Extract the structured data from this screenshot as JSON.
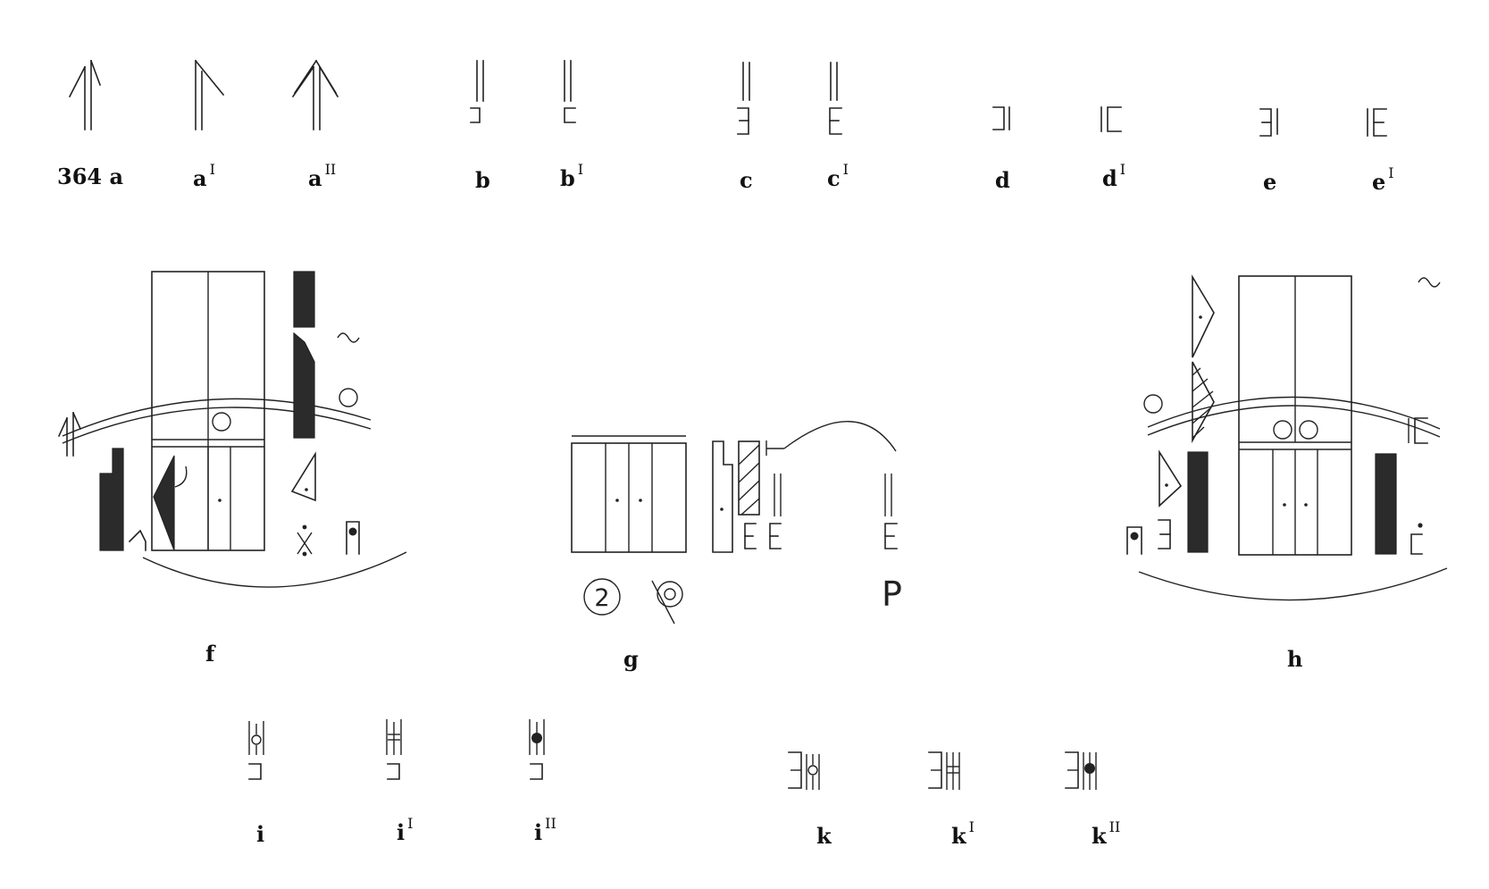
{
  "labels": {
    "a": "364 a",
    "a1": "a",
    "a1_mark": "I",
    "a2": "a",
    "a2_mark": "II",
    "b": "b",
    "b1": "b",
    "b1_mark": "I",
    "c": "c",
    "c1": "c",
    "c1_mark": "I",
    "d": "d",
    "d1": "d",
    "d1_mark": "I",
    "e": "e",
    "e1": "e",
    "e1_mark": "I",
    "f": "f",
    "g": "g",
    "h": "h",
    "i": "i",
    "i1": "i",
    "i1_mark": "I",
    "i2": "i",
    "i2_mark": "II",
    "k": "k",
    "k1": "k",
    "k1_mark": "I",
    "k2": "k",
    "k2_mark": "II"
  },
  "diagram_g": {
    "circle_numeral": "2",
    "p_sign": "P"
  },
  "colors": {
    "ink": "#222222",
    "fill_dark": "#2b2b2b",
    "background": "#ffffff"
  }
}
